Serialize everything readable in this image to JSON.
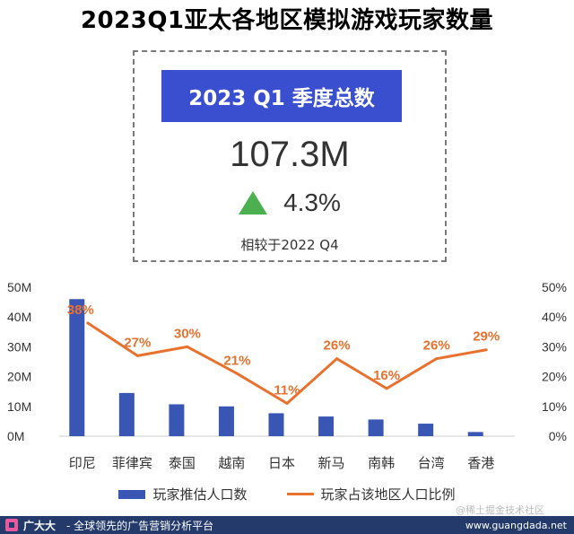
{
  "title": "2023Q1亚太各地区模拟游戏玩家数量",
  "summary": {
    "heading": "2023 Q1 季度总数",
    "total": "107.3M",
    "growth": "4.3%",
    "comparison": "相较于2022 Q4"
  },
  "colors": {
    "bar": "#3a56b4",
    "line": "#e8712e",
    "header": "#3a4fd0",
    "arrow": "#4caf50"
  },
  "chart_data": {
    "type": "bar+line",
    "categories": [
      "印尼",
      "菲律宾",
      "泰国",
      "越南",
      "日本",
      "新马",
      "南韩",
      "台湾",
      "香港"
    ],
    "series": [
      {
        "name": "玩家推估人口数",
        "type": "bar",
        "axis": "left",
        "values": [
          46,
          14.5,
          10.7,
          10,
          7.7,
          6.6,
          5.6,
          4.2,
          1.4
        ]
      },
      {
        "name": "玩家占该地区人口比例",
        "type": "line",
        "axis": "right",
        "values": [
          38,
          27,
          30,
          21,
          11,
          26,
          16,
          26,
          29
        ]
      }
    ],
    "data_labels": [
      "38%",
      "27%",
      "30%",
      "21%",
      "11%",
      "26%",
      "16%",
      "26%",
      "29%"
    ],
    "left_axis": {
      "ylim": [
        0,
        50
      ],
      "ticks": [
        "0M",
        "10M",
        "20M",
        "30M",
        "40M",
        "50M"
      ]
    },
    "right_axis": {
      "ylim": [
        0,
        50
      ],
      "ticks": [
        "0%",
        "10%",
        "20%",
        "30%",
        "40%",
        "50%"
      ]
    },
    "legend": [
      "玩家推估人口数",
      "玩家占该地区人口比例"
    ],
    "legend_position": "bottom"
  },
  "footer": {
    "brand": "广大大",
    "slogan": "- 全球领先的广告营销分析平台",
    "site": "www.guangdada.net",
    "watermark": "@稀土掘金技术社区"
  }
}
